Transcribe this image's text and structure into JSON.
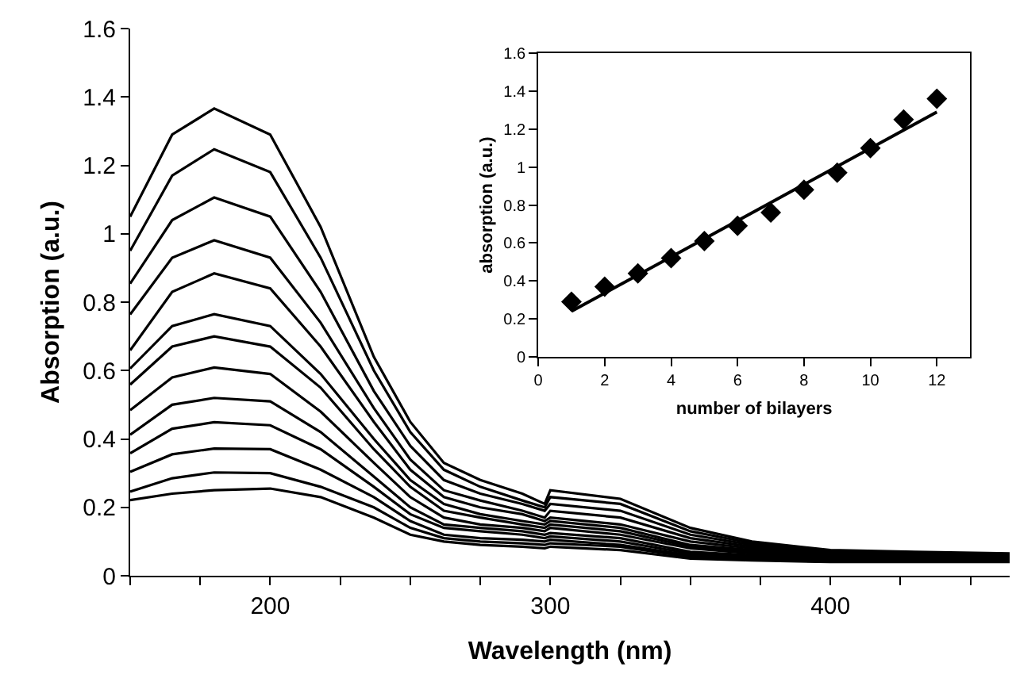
{
  "chart_data": [
    {
      "type": "line",
      "xlabel": "Wavelength (nm)",
      "ylabel": "Absorption (a.u.)",
      "marker": "none",
      "line_style": "solid",
      "x": [
        150,
        165,
        180,
        200,
        218,
        237,
        250,
        262,
        275,
        290,
        298,
        300,
        325,
        350,
        372,
        400,
        430,
        464
      ],
      "xlim": [
        150,
        464
      ],
      "xticks": [
        {
          "value": 150,
          "label": null
        },
        {
          "value": 175,
          "label": null
        },
        200,
        {
          "value": 225,
          "label": null
        },
        {
          "value": 250,
          "label": null
        },
        {
          "value": 275,
          "label": null
        },
        300,
        {
          "value": 325,
          "label": null
        },
        {
          "value": 350,
          "label": null
        },
        {
          "value": 375,
          "label": null
        },
        400,
        {
          "value": 425,
          "label": null
        },
        {
          "value": 450,
          "label": null
        }
      ],
      "ylim": [
        0,
        1.6
      ],
      "yticks": [
        0,
        0.2,
        0.4,
        0.6,
        0.8,
        1,
        1.2,
        1.4,
        1.6
      ],
      "series": [
        {
          "color": "#000000",
          "values": [
            1.05,
            1.29,
            1.366,
            1.29,
            1.02,
            0.64,
            0.45,
            0.33,
            0.28,
            0.24,
            0.21,
            0.25,
            0.225,
            0.14,
            0.1,
            0.075,
            0.07,
            0.065
          ]
        },
        {
          "color": "#000000",
          "values": [
            0.95,
            1.17,
            1.247,
            1.18,
            0.93,
            0.6,
            0.42,
            0.31,
            0.26,
            0.22,
            0.2,
            0.23,
            0.21,
            0.13,
            0.095,
            0.072,
            0.068,
            0.063
          ]
        },
        {
          "color": "#000000",
          "values": [
            0.854,
            1.04,
            1.106,
            1.05,
            0.83,
            0.54,
            0.38,
            0.28,
            0.24,
            0.21,
            0.19,
            0.21,
            0.19,
            0.12,
            0.09,
            0.07,
            0.066,
            0.062
          ]
        },
        {
          "color": "#000000",
          "values": [
            0.764,
            0.93,
            0.981,
            0.93,
            0.74,
            0.49,
            0.34,
            0.25,
            0.22,
            0.19,
            0.17,
            0.19,
            0.17,
            0.11,
            0.085,
            0.068,
            0.064,
            0.06
          ]
        },
        {
          "color": "#000000",
          "values": [
            0.659,
            0.83,
            0.884,
            0.84,
            0.67,
            0.45,
            0.31,
            0.23,
            0.2,
            0.18,
            0.16,
            0.17,
            0.15,
            0.1,
            0.08,
            0.066,
            0.062,
            0.058
          ]
        },
        {
          "color": "#000000",
          "values": [
            0.606,
            0.73,
            0.765,
            0.73,
            0.59,
            0.4,
            0.28,
            0.21,
            0.18,
            0.16,
            0.15,
            0.16,
            0.14,
            0.09,
            0.075,
            0.062,
            0.06,
            0.056
          ]
        },
        {
          "color": "#000000",
          "values": [
            0.559,
            0.67,
            0.7,
            0.67,
            0.55,
            0.37,
            0.26,
            0.19,
            0.17,
            0.15,
            0.14,
            0.15,
            0.13,
            0.085,
            0.07,
            0.06,
            0.058,
            0.054
          ]
        },
        {
          "color": "#000000",
          "values": [
            0.484,
            0.58,
            0.609,
            0.59,
            0.48,
            0.33,
            0.23,
            0.17,
            0.15,
            0.14,
            0.13,
            0.14,
            0.12,
            0.08,
            0.065,
            0.055,
            0.055,
            0.052
          ]
        },
        {
          "color": "#000000",
          "values": [
            0.412,
            0.5,
            0.52,
            0.51,
            0.42,
            0.29,
            0.2,
            0.15,
            0.14,
            0.13,
            0.12,
            0.125,
            0.11,
            0.07,
            0.06,
            0.052,
            0.052,
            0.05
          ]
        },
        {
          "color": "#000000",
          "values": [
            0.358,
            0.43,
            0.449,
            0.44,
            0.37,
            0.26,
            0.18,
            0.14,
            0.13,
            0.12,
            0.11,
            0.115,
            0.1,
            0.065,
            0.055,
            0.05,
            0.05,
            0.048
          ]
        },
        {
          "color": "#000000",
          "values": [
            0.304,
            0.355,
            0.372,
            0.37,
            0.31,
            0.23,
            0.16,
            0.12,
            0.11,
            0.105,
            0.1,
            0.105,
            0.09,
            0.06,
            0.05,
            0.047,
            0.047,
            0.046
          ]
        },
        {
          "color": "#000000",
          "values": [
            0.246,
            0.285,
            0.302,
            0.3,
            0.26,
            0.2,
            0.14,
            0.11,
            0.1,
            0.095,
            0.09,
            0.095,
            0.085,
            0.055,
            0.048,
            0.044,
            0.044,
            0.043
          ]
        },
        {
          "color": "#000000",
          "values": [
            0.221,
            0.24,
            0.25,
            0.255,
            0.23,
            0.17,
            0.12,
            0.1,
            0.09,
            0.085,
            0.08,
            0.085,
            0.075,
            0.05,
            0.045,
            0.04,
            0.04,
            0.04
          ]
        }
      ]
    },
    {
      "type": "scatter",
      "xlabel": "number of bilayers",
      "ylabel": "absorption (a.u.)",
      "x": [
        1,
        2,
        3,
        4,
        5,
        6,
        7,
        8,
        9,
        10,
        11,
        12
      ],
      "xlim": [
        0,
        13
      ],
      "xticks": [
        0,
        2,
        4,
        6,
        8,
        10,
        12
      ],
      "ylim": [
        0,
        1.6
      ],
      "yticks": [
        0,
        0.2,
        0.4,
        0.6,
        0.8,
        1,
        1.2,
        1.4,
        1.6
      ],
      "series": [
        {
          "color": "#000000",
          "marker": "diamond",
          "values": [
            0.29,
            0.37,
            0.44,
            0.52,
            0.61,
            0.69,
            0.76,
            0.88,
            0.97,
            1.1,
            1.25,
            1.36
          ]
        },
        {
          "type": "line",
          "color": "#000000",
          "marker": "none",
          "x": [
            1,
            12
          ],
          "values": [
            0.24,
            1.29
          ]
        }
      ]
    }
  ]
}
